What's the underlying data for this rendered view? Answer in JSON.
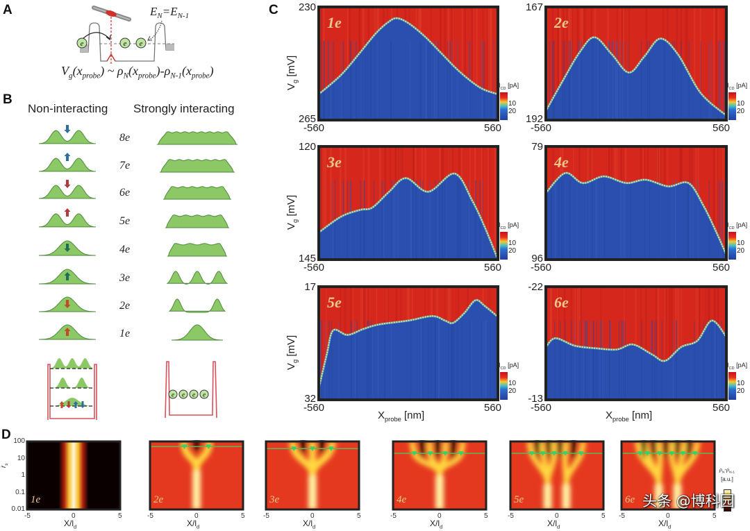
{
  "panel_labels": {
    "a": "A",
    "b": "B",
    "c": "C",
    "d": "D"
  },
  "panel_a": {
    "energy_eq": {
      "e1": "E",
      "s1": "N",
      "eq": "=E",
      "s2": "N-1"
    },
    "electron_symbol": "e",
    "formula": {
      "vg": "V",
      "vg_sub": "g",
      "open1": "(x",
      "probe1": "probe",
      "close1": ") ~ ",
      "rho1": "ρ",
      "rho1_sub": "N",
      "open2": "(x",
      "probe2": "probe",
      "close2": ")-",
      "rho2": "ρ",
      "rho2_sub": "N-1",
      "open3": "(x",
      "probe3": "probe",
      "close3": ")"
    },
    "colors": {
      "probe_tip": "#d0312d",
      "electron_fill": "#bfe3a0",
      "barrier": "#777777"
    }
  },
  "panel_b": {
    "header_left": "Non-interacting",
    "header_right": "Strongly interacting",
    "electron_symbol": "e",
    "hump_color": "#8cc865",
    "rows": [
      {
        "label": "8e",
        "n": 8,
        "spin": "down",
        "spin_color": "#2f6e9c"
      },
      {
        "label": "7e",
        "n": 7,
        "spin": "up",
        "spin_color": "#2f6e9c"
      },
      {
        "label": "6e",
        "n": 6,
        "spin": "down",
        "spin_color": "#b23a3a"
      },
      {
        "label": "5e",
        "n": 5,
        "spin": "up",
        "spin_color": "#b23a3a"
      },
      {
        "label": "4e",
        "n": 4,
        "spin": "down",
        "spin_color": "#1f6e5a"
      },
      {
        "label": "3e",
        "n": 3,
        "spin": "up",
        "spin_color": "#1f6e5a"
      },
      {
        "label": "2e",
        "n": 2,
        "spin": "down",
        "spin_color": "#c24a26"
      },
      {
        "label": "1e",
        "n": 1,
        "spin": "up",
        "spin_color": "#c24a26"
      }
    ],
    "well_spins": [
      {
        "spin": "up",
        "color": "#c24a26"
      },
      {
        "spin": "down",
        "color": "#b23a3a"
      },
      {
        "spin": "up",
        "color": "#2f6e9c"
      },
      {
        "spin": "down",
        "color": "#2f6e9c"
      }
    ]
  },
  "watermark": "头条 @博科园",
  "chart_data": [
    {
      "type": "heatmap",
      "panel": "C",
      "title": "1e",
      "xlim": [
        -560,
        560
      ],
      "ylim_top": 230,
      "ylim_bottom": 265,
      "x_ticks": [
        "-560",
        "560"
      ],
      "y_ticks": [
        "230",
        "265"
      ],
      "ylabel": {
        "main": "V",
        "sub": "g",
        "unit": " [mV]"
      },
      "xlabel": null,
      "colorbar": {
        "label": "I",
        "label_sub": "CD",
        "unit": " [pA]",
        "ticks": [
          "10",
          "20"
        ]
      },
      "colors": {
        "above": "#d6271d",
        "below": "#2b4fae",
        "boundary": "#f3dc7a"
      },
      "boundary": [
        [
          -560,
          257
        ],
        [
          -420,
          251
        ],
        [
          -300,
          244
        ],
        [
          -200,
          238
        ],
        [
          -120,
          234.5
        ],
        [
          -70,
          233.5
        ],
        [
          0,
          235
        ],
        [
          100,
          239
        ],
        [
          200,
          244
        ],
        [
          320,
          250
        ],
        [
          450,
          255
        ],
        [
          560,
          257
        ]
      ]
    },
    {
      "type": "heatmap",
      "panel": "C",
      "title": "2e",
      "xlim": [
        -560,
        560
      ],
      "ylim_top": 167,
      "ylim_bottom": 192,
      "x_ticks": [
        "-560",
        "560"
      ],
      "y_ticks": [
        "167",
        "192"
      ],
      "ylabel": null,
      "xlabel": null,
      "colorbar": {
        "label": "I",
        "label_sub": "CD",
        "unit": " [pA]",
        "ticks": [
          "10",
          "20"
        ]
      },
      "colors": {
        "above": "#d6271d",
        "below": "#2b4fae",
        "boundary": "#f3dc7a"
      },
      "boundary": [
        [
          -560,
          190
        ],
        [
          -450,
          183
        ],
        [
          -350,
          177
        ],
        [
          -258,
          173.7
        ],
        [
          -150,
          177.5
        ],
        [
          -45,
          181.5
        ],
        [
          50,
          178
        ],
        [
          150,
          174
        ],
        [
          260,
          177.5
        ],
        [
          400,
          186
        ],
        [
          560,
          191
        ]
      ]
    },
    {
      "type": "heatmap",
      "panel": "C",
      "title": "3e",
      "xlim": [
        -560,
        560
      ],
      "ylim_top": 120,
      "ylim_bottom": 145,
      "x_ticks": [
        "-560",
        "560"
      ],
      "y_ticks": [
        "120",
        "145"
      ],
      "ylabel": {
        "main": "V",
        "sub": "g",
        "unit": " [mV]"
      },
      "xlabel": null,
      "colorbar": {
        "label": "I",
        "label_sub": "CD",
        "unit": " [pA]",
        "ticks": [
          "10",
          "20"
        ]
      },
      "colors": {
        "above": "#d6271d",
        "below": "#2b4fae",
        "boundary": "#f3dc7a"
      },
      "boundary": [
        [
          -560,
          139
        ],
        [
          -420,
          135.5
        ],
        [
          -300,
          134
        ],
        [
          -225,
          133.5
        ],
        [
          -120,
          130
        ],
        [
          -15,
          127
        ],
        [
          125,
          130
        ],
        [
          290,
          126
        ],
        [
          400,
          132
        ],
        [
          480,
          138
        ],
        [
          560,
          145
        ]
      ]
    },
    {
      "type": "heatmap",
      "panel": "C",
      "title": "4e",
      "xlim": [
        -560,
        560
      ],
      "ylim_top": 79,
      "ylim_bottom": 96,
      "x_ticks": [
        "-560",
        "560"
      ],
      "y_ticks": [
        "79",
        "96"
      ],
      "ylabel": null,
      "xlabel": null,
      "colorbar": {
        "label": "I",
        "label_sub": "CD",
        "unit": " [pA]",
        "ticks": [
          "10",
          "20"
        ]
      },
      "colors": {
        "above": "#d6271d",
        "below": "#2b4fae",
        "boundary": "#f3dc7a"
      },
      "boundary": [
        [
          -560,
          86
        ],
        [
          -440,
          83
        ],
        [
          -330,
          84.5
        ],
        [
          -200,
          83.5
        ],
        [
          -60,
          84.5
        ],
        [
          60,
          84
        ],
        [
          200,
          85
        ],
        [
          325,
          84.5
        ],
        [
          420,
          88
        ],
        [
          500,
          92
        ],
        [
          560,
          95.3
        ]
      ]
    },
    {
      "type": "heatmap",
      "panel": "C",
      "title": "5e",
      "xlim": [
        -560,
        560
      ],
      "ylim_top": 17,
      "ylim_bottom": 32,
      "x_ticks": [
        "-560",
        "560"
      ],
      "y_ticks": [
        "17",
        "32"
      ],
      "ylabel": {
        "main": "V",
        "sub": "g",
        "unit": " [mV]"
      },
      "xlabel": {
        "main": "X",
        "sub": "probe",
        "unit": " [nm]"
      },
      "colorbar": {
        "label": "I",
        "label_sub": "CD",
        "unit": " [pA]",
        "ticks": [
          "10",
          "20"
        ]
      },
      "colors": {
        "above": "#d6271d",
        "below": "#2b4fae",
        "boundary": "#f3dc7a"
      },
      "boundary": [
        [
          -560,
          30.5
        ],
        [
          -510,
          26
        ],
        [
          -470,
          22.8
        ],
        [
          -380,
          23.4
        ],
        [
          -280,
          22.6
        ],
        [
          -180,
          22
        ],
        [
          0,
          21.5
        ],
        [
          150,
          20.9
        ],
        [
          230,
          21.5
        ],
        [
          280,
          21.8
        ],
        [
          350,
          20.5
        ],
        [
          420,
          18.8
        ],
        [
          480,
          19.6
        ],
        [
          560,
          21
        ]
      ]
    },
    {
      "type": "heatmap",
      "panel": "C",
      "title": "6e",
      "xlim": [
        -560,
        560
      ],
      "ylim_top": -22,
      "ylim_bottom": -13,
      "x_ticks": [
        "-560",
        "560"
      ],
      "y_ticks": [
        "-22",
        "-13"
      ],
      "ylabel": null,
      "xlabel": {
        "main": "X",
        "sub": "probe",
        "unit": " [nm]"
      },
      "colorbar": {
        "label": "I",
        "label_sub": "CD",
        "unit": " [pA]",
        "ticks": [
          "10",
          "20"
        ]
      },
      "colors": {
        "above": "#d6271d",
        "below": "#2b4fae",
        "boundary": "#f3dc7a"
      },
      "boundary": [
        [
          -560,
          -17.2
        ],
        [
          -500,
          -17.9
        ],
        [
          -380,
          -17.3
        ],
        [
          -250,
          -17.1
        ],
        [
          -120,
          -17
        ],
        [
          -20,
          -17.4
        ],
        [
          100,
          -16.6
        ],
        [
          180,
          -16.1
        ],
        [
          280,
          -17.2
        ],
        [
          380,
          -17.7
        ],
        [
          470,
          -19.3
        ],
        [
          560,
          -18
        ]
      ]
    },
    {
      "type": "heatmap",
      "panel": "D",
      "title": "1e",
      "xlim": [
        -5,
        5
      ],
      "ylim": [
        0.01,
        100
      ],
      "y_scale": "log",
      "x_ticks": [
        "-5",
        "0",
        "5"
      ],
      "y_ticks": [
        "100",
        "10",
        "1",
        "0.1",
        "0.01"
      ],
      "xlabel": {
        "main": "X/l",
        "sub": "d"
      },
      "ylabel": {
        "main": "r̄",
        "sub": "s"
      },
      "peak_positions": [
        0
      ],
      "rs_line": null
    },
    {
      "type": "heatmap",
      "panel": "D",
      "title": "2e",
      "xlim": [
        -5,
        5
      ],
      "ylim": [
        0.01,
        100
      ],
      "y_scale": "log",
      "x_ticks": [
        "-5",
        "0",
        "5"
      ],
      "xlabel": {
        "main": "X/l",
        "sub": "d"
      },
      "peak_positions": [
        -1.3,
        1.3
      ],
      "rs_line": 50
    },
    {
      "type": "heatmap",
      "panel": "D",
      "title": "3e",
      "xlim": [
        -5,
        5
      ],
      "ylim": [
        0.01,
        100
      ],
      "y_scale": "log",
      "x_ticks": [
        "-5",
        "0",
        "5"
      ],
      "xlabel": {
        "main": "X/l",
        "sub": "d"
      },
      "peak_positions": [
        -2.0,
        0,
        2.0
      ],
      "rs_line": 38
    },
    {
      "type": "heatmap",
      "panel": "D",
      "title": "4e",
      "xlim": [
        -5,
        5
      ],
      "ylim": [
        0.01,
        100
      ],
      "y_scale": "log",
      "x_ticks": [
        "-5",
        "0",
        "5"
      ],
      "xlabel": {
        "main": "X/l",
        "sub": "d"
      },
      "peak_positions": [
        -2.7,
        -1.0,
        0.6,
        2.3
      ],
      "rs_line": 20
    },
    {
      "type": "heatmap",
      "panel": "D",
      "title": "5e",
      "xlim": [
        -5,
        5
      ],
      "ylim": [
        0.01,
        100
      ],
      "y_scale": "log",
      "x_ticks": [
        "-5",
        "0",
        "5"
      ],
      "xlabel": {
        "main": "X/l",
        "sub": "d"
      },
      "peak_positions": [
        -2.7,
        -1.5,
        -0.3,
        0.9,
        2.6
      ],
      "rs_line": 20
    },
    {
      "type": "heatmap",
      "panel": "D",
      "title": "6e",
      "xlim": [
        -5,
        5
      ],
      "ylim": [
        0.01,
        100
      ],
      "y_scale": "log",
      "x_ticks": [
        "-5",
        "0",
        "5"
      ],
      "xlabel": {
        "main": "X/l",
        "sub": "d"
      },
      "peak_positions": [
        -3.0,
        -2.2,
        -0.9,
        0.4,
        1.6,
        2.9
      ],
      "rs_line": 20,
      "colorbar": {
        "label": "ρ",
        "label_sub1": "N",
        "label_mid": "-ρ",
        "label_sub2": "N-1",
        "unit": "[a.u.]"
      }
    }
  ]
}
